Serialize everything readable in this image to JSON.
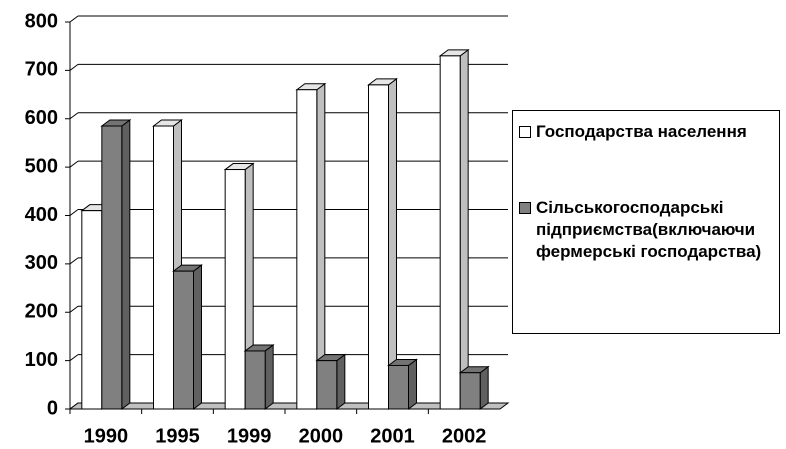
{
  "chart_data": {
    "type": "bar",
    "categories": [
      "1990",
      "1995",
      "1999",
      "2000",
      "2001",
      "2002"
    ],
    "series": [
      {
        "name": "Господарства населення",
        "color": "#ffffff",
        "values": [
          410,
          585,
          495,
          660,
          670,
          730
        ]
      },
      {
        "name": "Сільськогосподарські підприємства(включаючи фермерські господарства)",
        "color": "#808080",
        "values": [
          585,
          285,
          120,
          100,
          90,
          75
        ]
      }
    ],
    "ylim": [
      0,
      800
    ],
    "yticks": [
      0,
      100,
      200,
      300,
      400,
      500,
      600,
      700,
      800
    ],
    "grid": true
  }
}
